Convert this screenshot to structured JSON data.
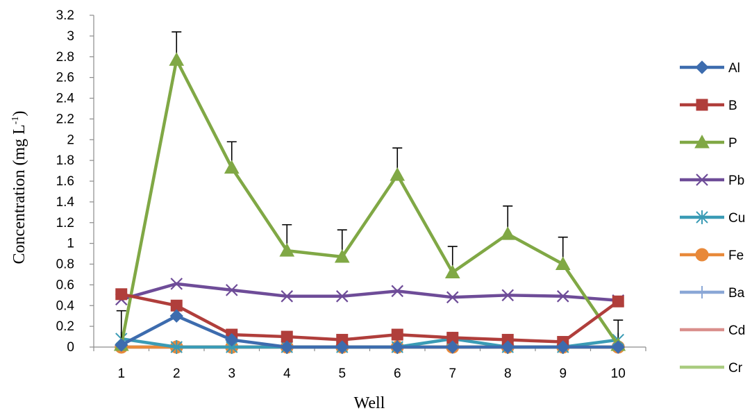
{
  "chart_data": {
    "type": "line",
    "xlabel": "Well",
    "ylabel": "Concentration (mg L",
    "ylabel_sup": "-1",
    "ylabel_close": ")",
    "ylim": [
      0,
      3.2
    ],
    "y_ticks": [
      0,
      0.2,
      0.4,
      0.6,
      0.8,
      1,
      1.2,
      1.4,
      1.6,
      1.8,
      2,
      2.2,
      2.4,
      2.6,
      2.8,
      3,
      3.2
    ],
    "y_tick_labels": [
      "0",
      "0.2",
      "0.4",
      "0.6",
      "0.8",
      "1",
      "1.2",
      "1.4",
      "1.6",
      "1.8",
      "2",
      "2.2",
      "2.4",
      "2.6",
      "2.8",
      "3",
      "3.2"
    ],
    "x": [
      "1",
      "2",
      "3",
      "4",
      "5",
      "6",
      "7",
      "8",
      "9",
      "10"
    ],
    "grid": false,
    "legend_position": "right",
    "series": [
      {
        "name": "Al",
        "color": "#3D6CAE",
        "marker": "diamond",
        "values": [
          0.02,
          0.3,
          0.07,
          0,
          0,
          0,
          0,
          0,
          0,
          0
        ]
      },
      {
        "name": "B",
        "color": "#B03E3B",
        "marker": "square",
        "values": [
          0.51,
          0.4,
          0.12,
          0.1,
          0.07,
          0.12,
          0.09,
          0.07,
          0.05,
          0.44
        ]
      },
      {
        "name": "P",
        "color": "#80A845",
        "marker": "triangle",
        "values": [
          0.02,
          2.77,
          1.73,
          0.93,
          0.87,
          1.66,
          0.72,
          1.09,
          0.8,
          0.02
        ],
        "error": [
          0.33,
          0.27,
          0.25,
          0.25,
          0.26,
          0.26,
          0.25,
          0.27,
          0.26,
          0.24
        ]
      },
      {
        "name": "Pb",
        "color": "#6E4C98",
        "marker": "x",
        "values": [
          0.46,
          0.61,
          0.55,
          0.49,
          0.49,
          0.54,
          0.48,
          0.5,
          0.49,
          0.45
        ]
      },
      {
        "name": "Cu",
        "color": "#3A9BB5",
        "marker": "star",
        "values": [
          0.08,
          0,
          0,
          0,
          0,
          0,
          0.08,
          0,
          0,
          0.07
        ]
      },
      {
        "name": "Fe",
        "color": "#E8893A",
        "marker": "circle",
        "values": [
          0,
          0,
          0,
          0,
          0,
          0,
          0,
          0,
          0,
          0
        ]
      },
      {
        "name": "Ba",
        "color": "#8AA7D6",
        "marker": "plus",
        "values": [
          0,
          0,
          0,
          0,
          0,
          0,
          0,
          0,
          0,
          0
        ]
      },
      {
        "name": "Cd",
        "color": "#D98F8C",
        "marker": "none",
        "values": [
          0,
          0,
          0,
          0,
          0,
          0,
          0,
          0,
          0,
          0
        ]
      },
      {
        "name": "Cr",
        "color": "#A9CC80",
        "marker": "none",
        "values": [
          0,
          0,
          0,
          0,
          0,
          0,
          0,
          0,
          0,
          0
        ]
      }
    ]
  }
}
